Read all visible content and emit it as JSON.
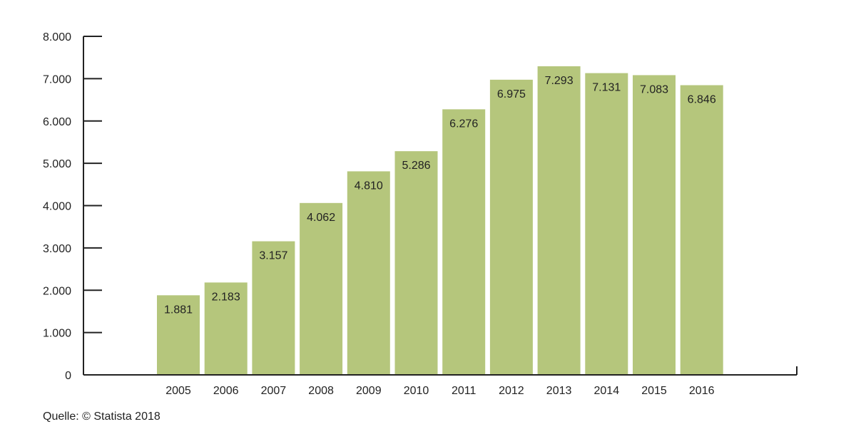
{
  "chart_data": {
    "type": "bar",
    "categories": [
      "2005",
      "2006",
      "2007",
      "2008",
      "2009",
      "2010",
      "2011",
      "2012",
      "2013",
      "2014",
      "2015",
      "2016"
    ],
    "values": [
      1881,
      2183,
      3157,
      4062,
      4810,
      5286,
      6276,
      6975,
      7293,
      7131,
      7083,
      6846
    ],
    "value_labels": [
      "1.881",
      "2.183",
      "3.157",
      "4.062",
      "4.810",
      "5.286",
      "6.276",
      "6.975",
      "7.293",
      "7.131",
      "7.083",
      "6.846"
    ],
    "y_ticks": [
      0,
      1000,
      2000,
      3000,
      4000,
      5000,
      6000,
      7000,
      8000
    ],
    "y_tick_labels": [
      "0",
      "1.000",
      "2.000",
      "3.000",
      "4.000",
      "5.000",
      "6.000",
      "7.000",
      "8.000"
    ],
    "ylim": [
      0,
      8000
    ],
    "title": "",
    "xlabel": "",
    "ylabel": "",
    "grid": false,
    "colors": {
      "bar": "#b5c67c",
      "axis": "#222222"
    }
  },
  "source": "Quelle: © Statista 2018"
}
